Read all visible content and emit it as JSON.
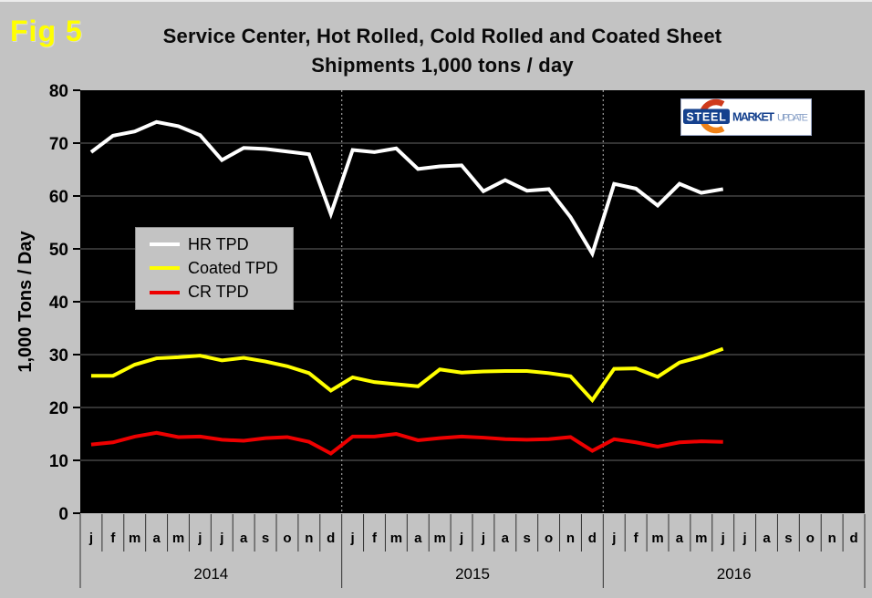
{
  "figure": {
    "label": "Fig 5"
  },
  "title": {
    "line1": "Service Center, Hot Rolled, Cold Rolled and Coated Sheet",
    "line2": "Shipments 1,000 tons / day"
  },
  "logo": {
    "steel": "STEEL",
    "market": "MARKET",
    "update": "UPDATE"
  },
  "colors": {
    "background": "#c3c3c3",
    "fig_label": "#ffff00",
    "plot_background": "#000000",
    "gridline": "#666666",
    "year_separator": "#909090",
    "axis_text": "#000000",
    "logo_dark_blue": "#15418e",
    "logo_light_blue": "#8aa2c8",
    "logo_orange_top": "#cf3a1b",
    "logo_orange_bottom": "#f08218"
  },
  "chart_data": {
    "type": "line",
    "title": "Service Center, Hot Rolled, Cold Rolled and Coated Sheet Shipments 1,000 tons / day",
    "xlabel": "",
    "ylabel": "1,000 Tons / Day",
    "ylim": [
      0,
      80
    ],
    "yticks": [
      0,
      10,
      20,
      30,
      40,
      50,
      60,
      70,
      80
    ],
    "grid": true,
    "plot_bg": "#000000",
    "gridline_color": "#666666",
    "legend_position": "inside-upper-left",
    "month_labels": [
      "j",
      "f",
      "m",
      "a",
      "m",
      "j",
      "j",
      "a",
      "s",
      "o",
      "n",
      "d"
    ],
    "years": [
      "2014",
      "2015",
      "2016"
    ],
    "months_per_year": 12,
    "x_span_months": 36,
    "series": [
      {
        "name": "HR TPD",
        "color": "#ffffff",
        "values": [
          68.3,
          71.4,
          72.2,
          74.0,
          73.2,
          71.5,
          66.8,
          69.1,
          68.9,
          68.4,
          67.9,
          56.6,
          68.7,
          68.3,
          69.0,
          65.1,
          65.6,
          65.8,
          60.9,
          63.0,
          61.0,
          61.3,
          56.0,
          49.1,
          62.3,
          61.4,
          58.2,
          62.3,
          60.6,
          61.3
        ]
      },
      {
        "name": "Coated TPD",
        "color": "#ffff00",
        "values": [
          26.0,
          26.0,
          28.1,
          29.3,
          29.5,
          29.8,
          28.9,
          29.4,
          28.7,
          27.8,
          26.5,
          23.2,
          25.7,
          24.8,
          24.4,
          24.0,
          27.2,
          26.6,
          26.8,
          26.9,
          26.9,
          26.5,
          25.9,
          21.4,
          27.3,
          27.4,
          25.8,
          28.5,
          29.6,
          31.1
        ]
      },
      {
        "name": "CR TPD",
        "color": "#ee0000",
        "values": [
          13.0,
          13.4,
          14.5,
          15.2,
          14.4,
          14.5,
          13.9,
          13.7,
          14.2,
          14.4,
          13.5,
          11.3,
          14.5,
          14.5,
          15.0,
          13.8,
          14.2,
          14.5,
          14.3,
          14.0,
          13.9,
          14.0,
          14.4,
          11.8,
          14.0,
          13.4,
          12.6,
          13.4,
          13.6,
          13.5
        ]
      }
    ]
  }
}
